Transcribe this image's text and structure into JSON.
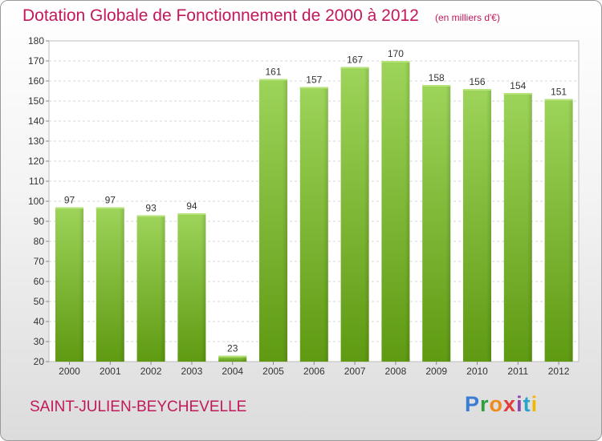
{
  "title": "Dotation Globale de Fonctionnement de 2000 à 2012",
  "subtitle": "(en milliers d'€)",
  "commune": "SAINT-JULIEN-BEYCHEVELLE",
  "logo": {
    "letters": [
      "P",
      "r",
      "o",
      "x",
      "i",
      "t",
      "i"
    ],
    "colors": [
      "#3a7bd5",
      "#2e9e3e",
      "#f08a1c",
      "#e23b3b",
      "#8e44ad",
      "#2aa3c9",
      "#f2b705"
    ]
  },
  "chart_data": {
    "type": "bar",
    "categories": [
      "2000",
      "2001",
      "2002",
      "2003",
      "2004",
      "2005",
      "2006",
      "2007",
      "2008",
      "2009",
      "2010",
      "2011",
      "2012"
    ],
    "values": [
      97,
      97,
      93,
      94,
      23,
      161,
      157,
      167,
      170,
      158,
      156,
      154,
      151
    ],
    "title": "Dotation Globale de Fonctionnement de 2000 à 2012",
    "ylim": [
      20,
      180
    ],
    "yticks": [
      20,
      30,
      40,
      50,
      60,
      70,
      80,
      90,
      100,
      110,
      120,
      130,
      140,
      150,
      160,
      170,
      180
    ],
    "grid": true,
    "bar_color": "#7cb82f"
  }
}
